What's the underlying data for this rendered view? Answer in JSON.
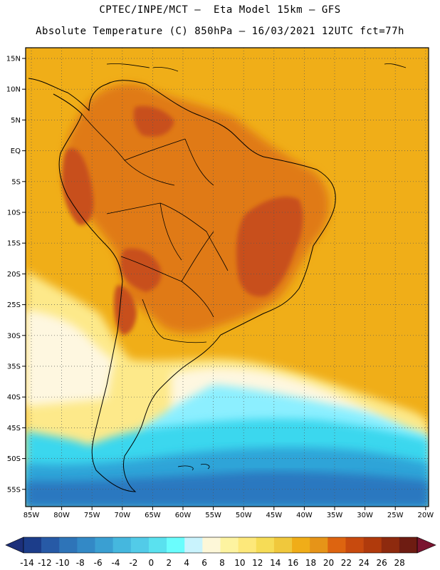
{
  "header": {
    "line1": "CPTEC/INPE/MCT –  Eta Model 15km – GFS",
    "line2": "Absolute Temperature (C) 850hPa – 16/03/2021 12UTC fct=77h"
  },
  "map": {
    "lat_labels": [
      "15N",
      "10N",
      "5N",
      "EQ",
      "5S",
      "10S",
      "15S",
      "20S",
      "25S",
      "30S",
      "35S",
      "40S",
      "45S",
      "50S",
      "55S"
    ],
    "lon_labels": [
      "85W",
      "80W",
      "75W",
      "70W",
      "65W",
      "60W",
      "55W",
      "50W",
      "45W",
      "40W",
      "35W",
      "30W",
      "25W",
      "20W"
    ],
    "colors": {
      "ocean_warm": "#f0ae18",
      "land_hot": "#e07a16",
      "hot_core": "#c8501c",
      "south_pale": "#fde98a",
      "cold_light": "#8cefff",
      "cold_cyan": "#3ad7ee",
      "cold_blue": "#2fa4d8",
      "cold_deep": "#2a78c0",
      "coast": "#000000"
    }
  },
  "colorbar": {
    "labels": [
      "-14",
      "-12",
      "-10",
      "-8",
      "-6",
      "-4",
      "-2",
      "0",
      "2",
      "4",
      "6",
      "8",
      "10",
      "12",
      "14",
      "16",
      "18",
      "20",
      "22",
      "24",
      "26",
      "28"
    ],
    "colors": [
      "#1c3d8a",
      "#275aa6",
      "#2e74b8",
      "#3389c6",
      "#3a9fd2",
      "#45b7de",
      "#52cbe8",
      "#5ae1ef",
      "#6afdfd",
      "#c9f3fd",
      "#fdf7d8",
      "#fdf3a0",
      "#fde87a",
      "#f6dc56",
      "#f0c83c",
      "#f0ad18",
      "#e69418",
      "#dd6410",
      "#c84a0e",
      "#b03a0c",
      "#8e2a0e",
      "#6e1c12"
    ],
    "under_color": "#1c2f7a",
    "over_color": "#7a1430"
  }
}
